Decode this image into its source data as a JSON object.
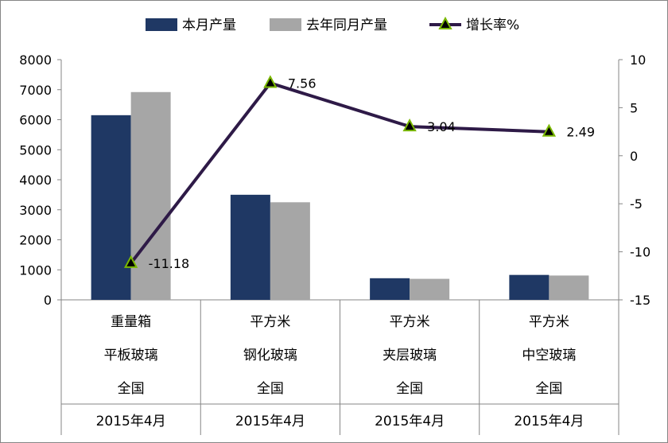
{
  "chart_data": {
    "type": "bar",
    "legend": {
      "placement": "top"
    },
    "grid": false,
    "categories": [
      [
        "重量箱",
        "平板玻璃",
        "全国",
        "2015年4月"
      ],
      [
        "平方米",
        "钢化玻璃",
        "全国",
        "2015年4月"
      ],
      [
        "平方米",
        "夹层玻璃",
        "全国",
        "2015年4月"
      ],
      [
        "平方米",
        "中空玻璃",
        "全国",
        "2015年4月"
      ]
    ],
    "series": [
      {
        "name": "本月产量",
        "type": "bar",
        "axis": "left",
        "color": "#1f3864",
        "values": [
          6150,
          3500,
          720,
          830
        ]
      },
      {
        "name": "去年同月产量",
        "type": "bar",
        "axis": "left",
        "color": "#a6a6a6",
        "values": [
          6920,
          3250,
          700,
          810
        ]
      },
      {
        "name": "增长率%",
        "type": "line",
        "axis": "right",
        "color": "#2e1a47",
        "marker_color": "#7ab800",
        "values": [
          -11.18,
          7.56,
          3.04,
          2.49
        ],
        "labels": [
          "-11.18",
          "7.56",
          "3.04",
          "2.49"
        ]
      }
    ],
    "y_left": {
      "ylim": [
        0,
        8000
      ],
      "ticks": [
        0,
        1000,
        2000,
        3000,
        4000,
        5000,
        6000,
        7000,
        8000
      ]
    },
    "y_right": {
      "ylim": [
        -15,
        10
      ],
      "ticks": [
        -15,
        -10,
        -5,
        0,
        5,
        10
      ]
    }
  }
}
